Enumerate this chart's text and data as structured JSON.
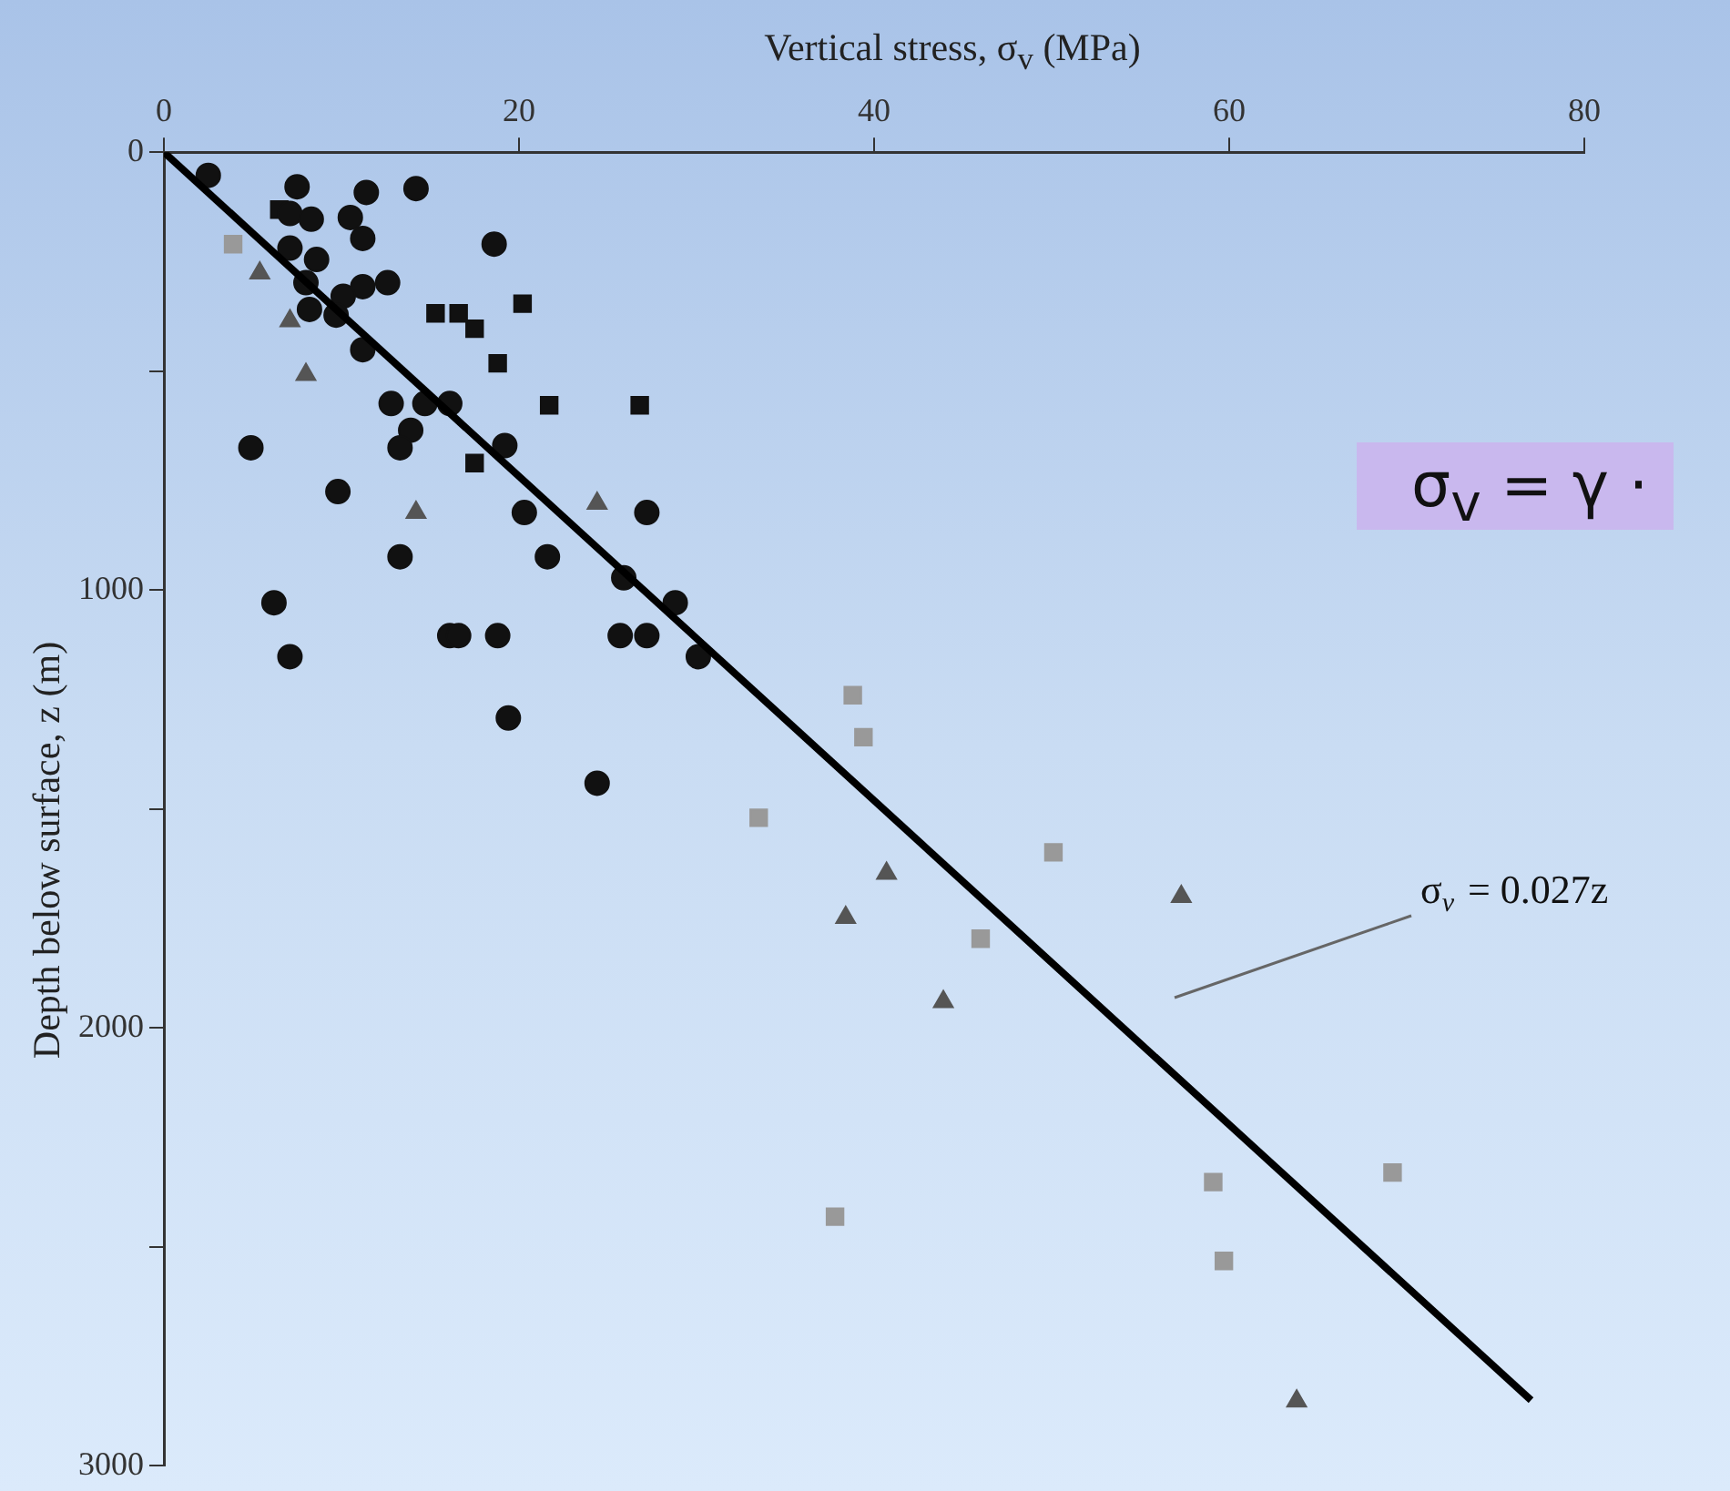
{
  "chart_data": {
    "type": "scatter",
    "xlabel": "Vertical stress, σ$_{v}$ (MPa)",
    "ylabel": "Depth below surface, z (m)",
    "xlim": [
      0,
      80
    ],
    "xticks": [
      0,
      20,
      40,
      60,
      80
    ],
    "ylim": [
      3000,
      0
    ],
    "yticks": [
      0,
      {
        "value": 500,
        "label": null
      },
      1000,
      {
        "value": 1500,
        "label": null
      },
      2000,
      {
        "value": 2500,
        "label": null
      },
      3000
    ],
    "grid": false,
    "legend": false,
    "annotations": [
      "σ$_{v}$ = γ ·",
      "σ$_{v}$ = 0.027z"
    ],
    "series": [
      {
        "color": "#111111",
        "marker": "circle",
        "x": [
          2.5,
          7.5,
          11.4,
          14.2,
          7.1,
          8.3,
          10.5,
          11.2,
          18.6,
          7.1,
          8.6,
          8.0,
          11.2,
          12.6,
          10.1,
          8.2,
          9.7,
          11.2,
          12.8,
          14.7,
          16.1,
          13.9,
          13.3,
          4.9,
          19.2,
          9.8,
          20.3,
          27.2,
          13.3,
          21.6,
          25.9,
          6.2,
          28.8,
          16.1,
          16.6,
          18.8,
          25.7,
          27.2,
          7.1,
          30.1,
          19.4,
          24.4
        ],
        "values": [
          53,
          79,
          92,
          83,
          140,
          153,
          149,
          197,
          210,
          219,
          245,
          298,
          307,
          298,
          329,
          359,
          372,
          451,
          574,
          574,
          574,
          635,
          675,
          675,
          670,
          775,
          823,
          823,
          924,
          924,
          972,
          1029,
          1029,
          1104,
          1104,
          1104,
          1104,
          1104,
          1152,
          1152,
          1292,
          1441
        ]
      },
      {
        "color": "#111111",
        "marker": "square",
        "x": [
          15.3,
          16.6,
          17.5,
          20.2,
          18.8,
          21.7,
          26.8,
          17.5,
          6.5
        ],
        "values": [
          368,
          368,
          403,
          346,
          482,
          578,
          578,
          710,
          131
        ]
      },
      {
        "color": "#555555",
        "marker": "triangle",
        "x": [
          5.4,
          7.1,
          8.0,
          14.2,
          24.4,
          40.7,
          38.4,
          43.9,
          57.3,
          63.8
        ],
        "values": [
          276,
          385,
          508,
          823,
          802,
          1647,
          1748,
          1940,
          1700,
          2852
        ]
      },
      {
        "color": "#999999",
        "marker": "square",
        "x": [
          3.9,
          38.8,
          39.4,
          33.5,
          50.1,
          46.0,
          59.1,
          69.2,
          37.8,
          59.7
        ],
        "values": [
          210,
          1240,
          1336,
          1520,
          1599,
          1796,
          2352,
          2330,
          2431,
          2532
        ]
      },
      {
        "type": "line",
        "color": "#000000",
        "marker": "none",
        "x": [
          0,
          77
        ],
        "values": [
          0,
          2850
        ]
      }
    ]
  }
}
